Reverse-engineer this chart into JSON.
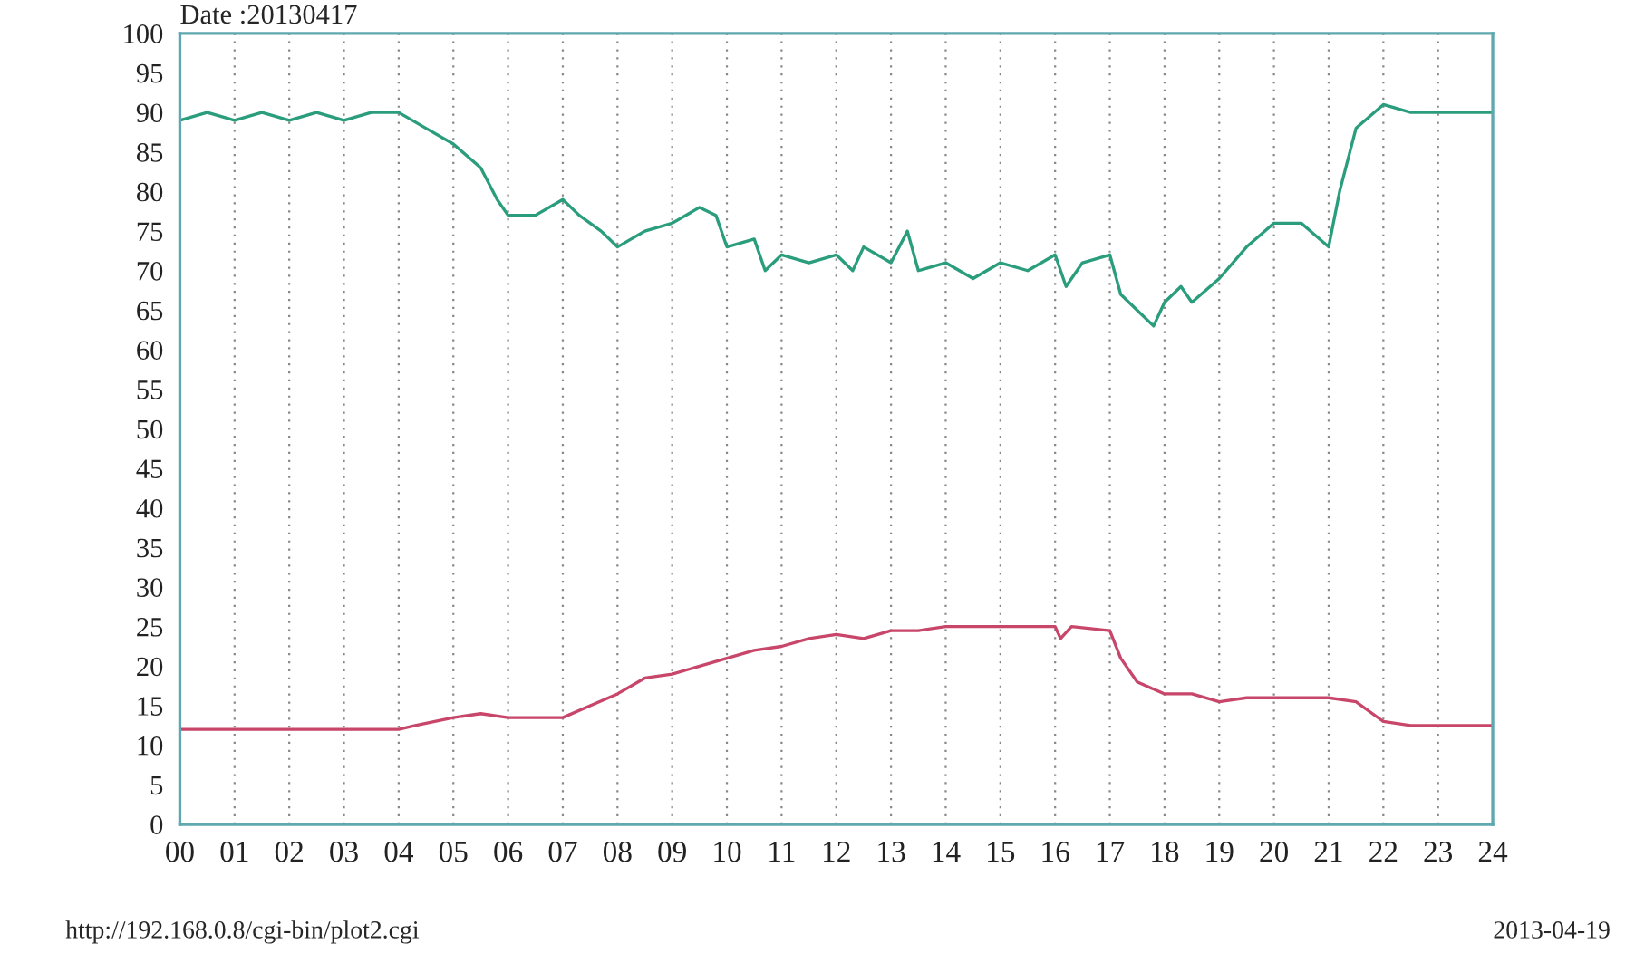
{
  "chart_data": {
    "type": "line",
    "annotations": [
      "Date :20130417",
      "http://192.168.0.8/cgi-bin/plot2.cgi",
      "2013-04-19"
    ],
    "xlim": [
      0,
      24
    ],
    "ylim": [
      0,
      100
    ],
    "xticks": [
      {
        "value": 0,
        "label": "00"
      },
      {
        "value": 1,
        "label": "01"
      },
      {
        "value": 2,
        "label": "02"
      },
      {
        "value": 3,
        "label": "03"
      },
      {
        "value": 4,
        "label": "04"
      },
      {
        "value": 5,
        "label": "05"
      },
      {
        "value": 6,
        "label": "06"
      },
      {
        "value": 7,
        "label": "07"
      },
      {
        "value": 8,
        "label": "08"
      },
      {
        "value": 9,
        "label": "09"
      },
      {
        "value": 10,
        "label": "10"
      },
      {
        "value": 11,
        "label": "11"
      },
      {
        "value": 12,
        "label": "12"
      },
      {
        "value": 13,
        "label": "13"
      },
      {
        "value": 14,
        "label": "14"
      },
      {
        "value": 15,
        "label": "15"
      },
      {
        "value": 16,
        "label": "16"
      },
      {
        "value": 17,
        "label": "17"
      },
      {
        "value": 18,
        "label": "18"
      },
      {
        "value": 19,
        "label": "19"
      },
      {
        "value": 20,
        "label": "20"
      },
      {
        "value": 21,
        "label": "21"
      },
      {
        "value": 22,
        "label": "22"
      },
      {
        "value": 23,
        "label": "23"
      },
      {
        "value": 24,
        "label": "24"
      }
    ],
    "yticks": [
      0,
      5,
      10,
      15,
      20,
      25,
      30,
      35,
      40,
      45,
      50,
      55,
      60,
      65,
      70,
      75,
      80,
      85,
      90,
      95,
      100
    ],
    "grid": "x",
    "legend": false,
    "marker": "none",
    "line_style": "solid",
    "series": [
      {
        "color": "#2a9d7c",
        "x": [
          0,
          0.5,
          1,
          1.5,
          2,
          2.5,
          3,
          3.5,
          4,
          4.5,
          5,
          5.5,
          5.8,
          6,
          6.5,
          7,
          7.3,
          7.7,
          8,
          8.5,
          9,
          9.5,
          9.8,
          10,
          10.5,
          10.7,
          11,
          11.5,
          12,
          12.3,
          12.5,
          13,
          13.3,
          13.5,
          14,
          14.5,
          15,
          15.5,
          16,
          16.2,
          16.5,
          17,
          17.2,
          17.5,
          17.8,
          18,
          18.3,
          18.5,
          19,
          19.5,
          20,
          20.5,
          21,
          21.2,
          21.5,
          22,
          22.5,
          23,
          23.5,
          24
        ],
        "values": [
          89,
          90,
          89,
          90,
          89,
          90,
          89,
          90,
          90,
          88,
          86,
          83,
          79,
          77,
          77,
          79,
          77,
          75,
          73,
          75,
          76,
          78,
          77,
          73,
          74,
          70,
          72,
          71,
          72,
          70,
          73,
          71,
          75,
          70,
          71,
          69,
          71,
          70,
          72,
          68,
          71,
          72,
          67,
          65,
          63,
          66,
          68,
          66,
          69,
          73,
          76,
          76,
          73,
          80,
          88,
          91,
          90,
          90,
          90,
          90
        ]
      },
      {
        "color": "#c8466a",
        "x": [
          0,
          4,
          4.3,
          5,
          5.5,
          6,
          7,
          7.5,
          8,
          8.5,
          9,
          9.5,
          10,
          10.5,
          11,
          11.5,
          12,
          12.5,
          13,
          13.5,
          14,
          14.5,
          15,
          15.5,
          16,
          16.1,
          16.3,
          17,
          17.2,
          17.5,
          18,
          18.5,
          19,
          19.5,
          20,
          21,
          21.5,
          22,
          22.5,
          24
        ],
        "values": [
          12,
          12,
          12.5,
          13.5,
          14,
          13.5,
          13.5,
          15,
          16.5,
          18.5,
          19,
          20,
          21,
          22,
          22.5,
          23.5,
          24,
          23.5,
          24.5,
          24.5,
          25,
          25,
          25,
          25,
          25,
          23.5,
          25,
          24.5,
          21,
          18,
          16.5,
          16.5,
          15.5,
          16,
          16,
          16,
          15.5,
          13,
          12.5,
          12.5
        ]
      }
    ]
  }
}
